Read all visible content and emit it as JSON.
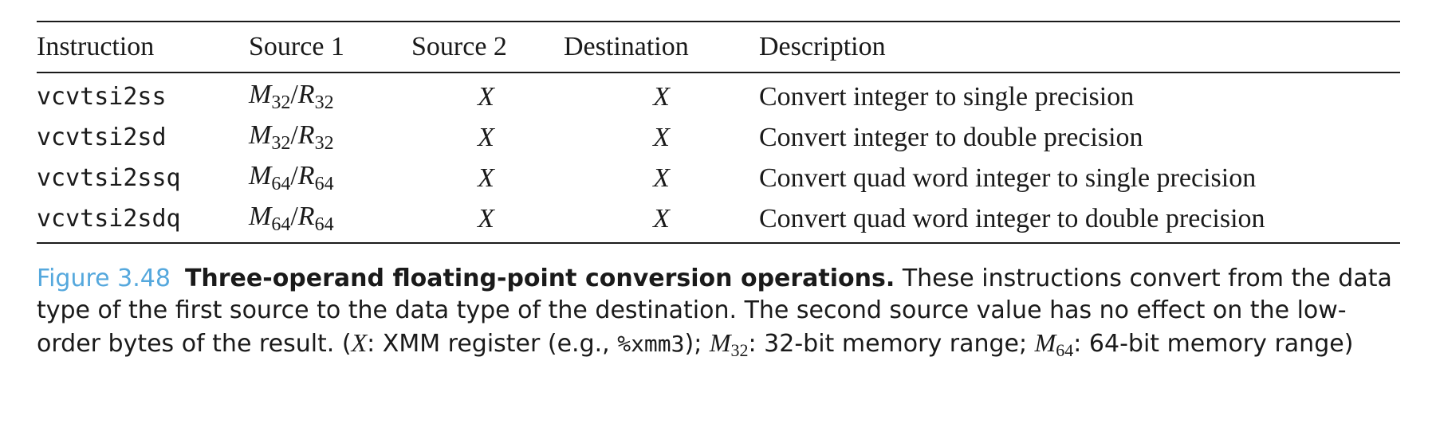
{
  "table": {
    "headers": {
      "instruction": "Instruction",
      "source1": "Source 1",
      "source2": "Source 2",
      "destination": "Destination",
      "description": "Description"
    },
    "rows": [
      {
        "instruction": "vcvtsi2ss",
        "src1_m": "M",
        "src1_m_sub": "32",
        "src1_sep": "/",
        "src1_r": "R",
        "src1_r_sub": "32",
        "source2": "X",
        "destination": "X",
        "description": "Convert integer to single precision"
      },
      {
        "instruction": "vcvtsi2sd",
        "src1_m": "M",
        "src1_m_sub": "32",
        "src1_sep": "/",
        "src1_r": "R",
        "src1_r_sub": "32",
        "source2": "X",
        "destination": "X",
        "description": "Convert integer to double precision"
      },
      {
        "instruction": "vcvtsi2ssq",
        "src1_m": "M",
        "src1_m_sub": "64",
        "src1_sep": "/",
        "src1_r": "R",
        "src1_r_sub": "64",
        "source2": "X",
        "destination": "X",
        "description": "Convert quad word integer to single precision"
      },
      {
        "instruction": "vcvtsi2sdq",
        "src1_m": "M",
        "src1_m_sub": "64",
        "src1_sep": "/",
        "src1_r": "R",
        "src1_r_sub": "64",
        "source2": "X",
        "destination": "X",
        "description": "Convert quad word integer to double precision"
      }
    ]
  },
  "caption": {
    "label": "Figure 3.48",
    "title": "Three-operand floating-point conversion operations.",
    "text1": " These instructions convert from the data type of the first source to the data type of the destination. The second source value has no effect on the low-order bytes of the result. (",
    "x_sym": "X",
    "text2": ": XMM register (e.g., ",
    "reg": "%xmm3",
    "text3": "); ",
    "m32_sym": "M",
    "m32_sub": "32",
    "text4": ": 32-bit memory range; ",
    "m64_sym": "M",
    "m64_sub": "64",
    "text5": ": 64-bit memory range)"
  }
}
